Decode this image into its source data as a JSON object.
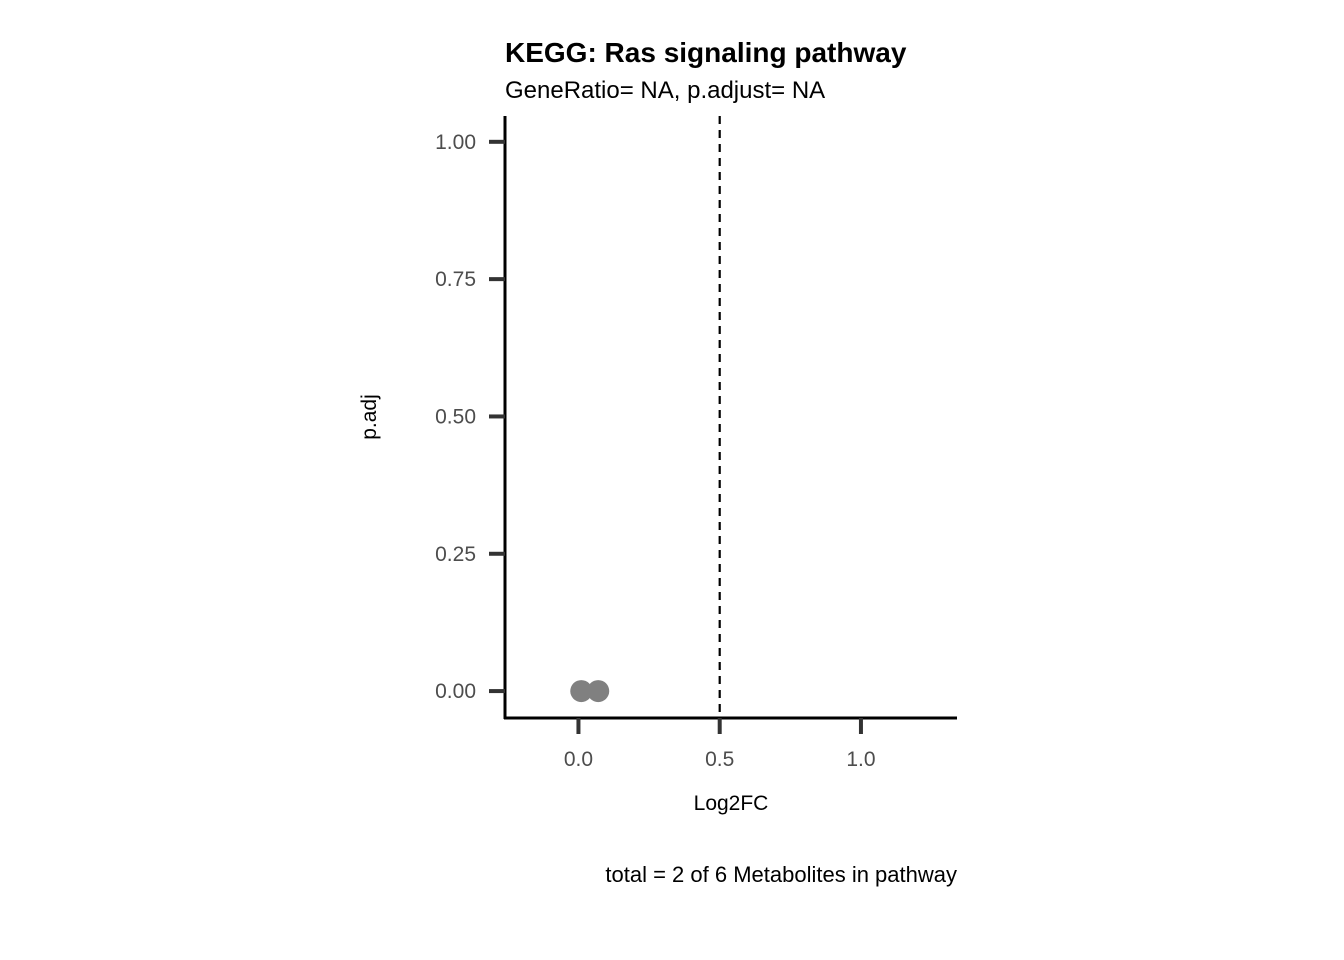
{
  "chart_data": {
    "type": "scatter",
    "title": "KEGG: Ras signaling pathway",
    "subtitle": "GeneRatio= NA, p.adjust= NA",
    "caption": "total = 2 of 6 Metabolites in pathway",
    "xlabel": "Log2FC",
    "ylabel": "p.adj",
    "xlim": [
      -0.26,
      1.34
    ],
    "ylim": [
      -0.049,
      1.047
    ],
    "xticks": [
      0.0,
      0.5,
      1.0
    ],
    "xtick_labels": [
      "0.0",
      "0.5",
      "1.0"
    ],
    "yticks": [
      0.0,
      0.25,
      0.5,
      0.75,
      1.0
    ],
    "ytick_labels": [
      "0.00",
      "0.25",
      "0.50",
      "0.75",
      "1.00"
    ],
    "vline": 0.5,
    "grid": false,
    "point_color": "#808080",
    "points": [
      {
        "x": 0.01,
        "y": 0.0
      },
      {
        "x": 0.07,
        "y": 0.0
      }
    ]
  }
}
